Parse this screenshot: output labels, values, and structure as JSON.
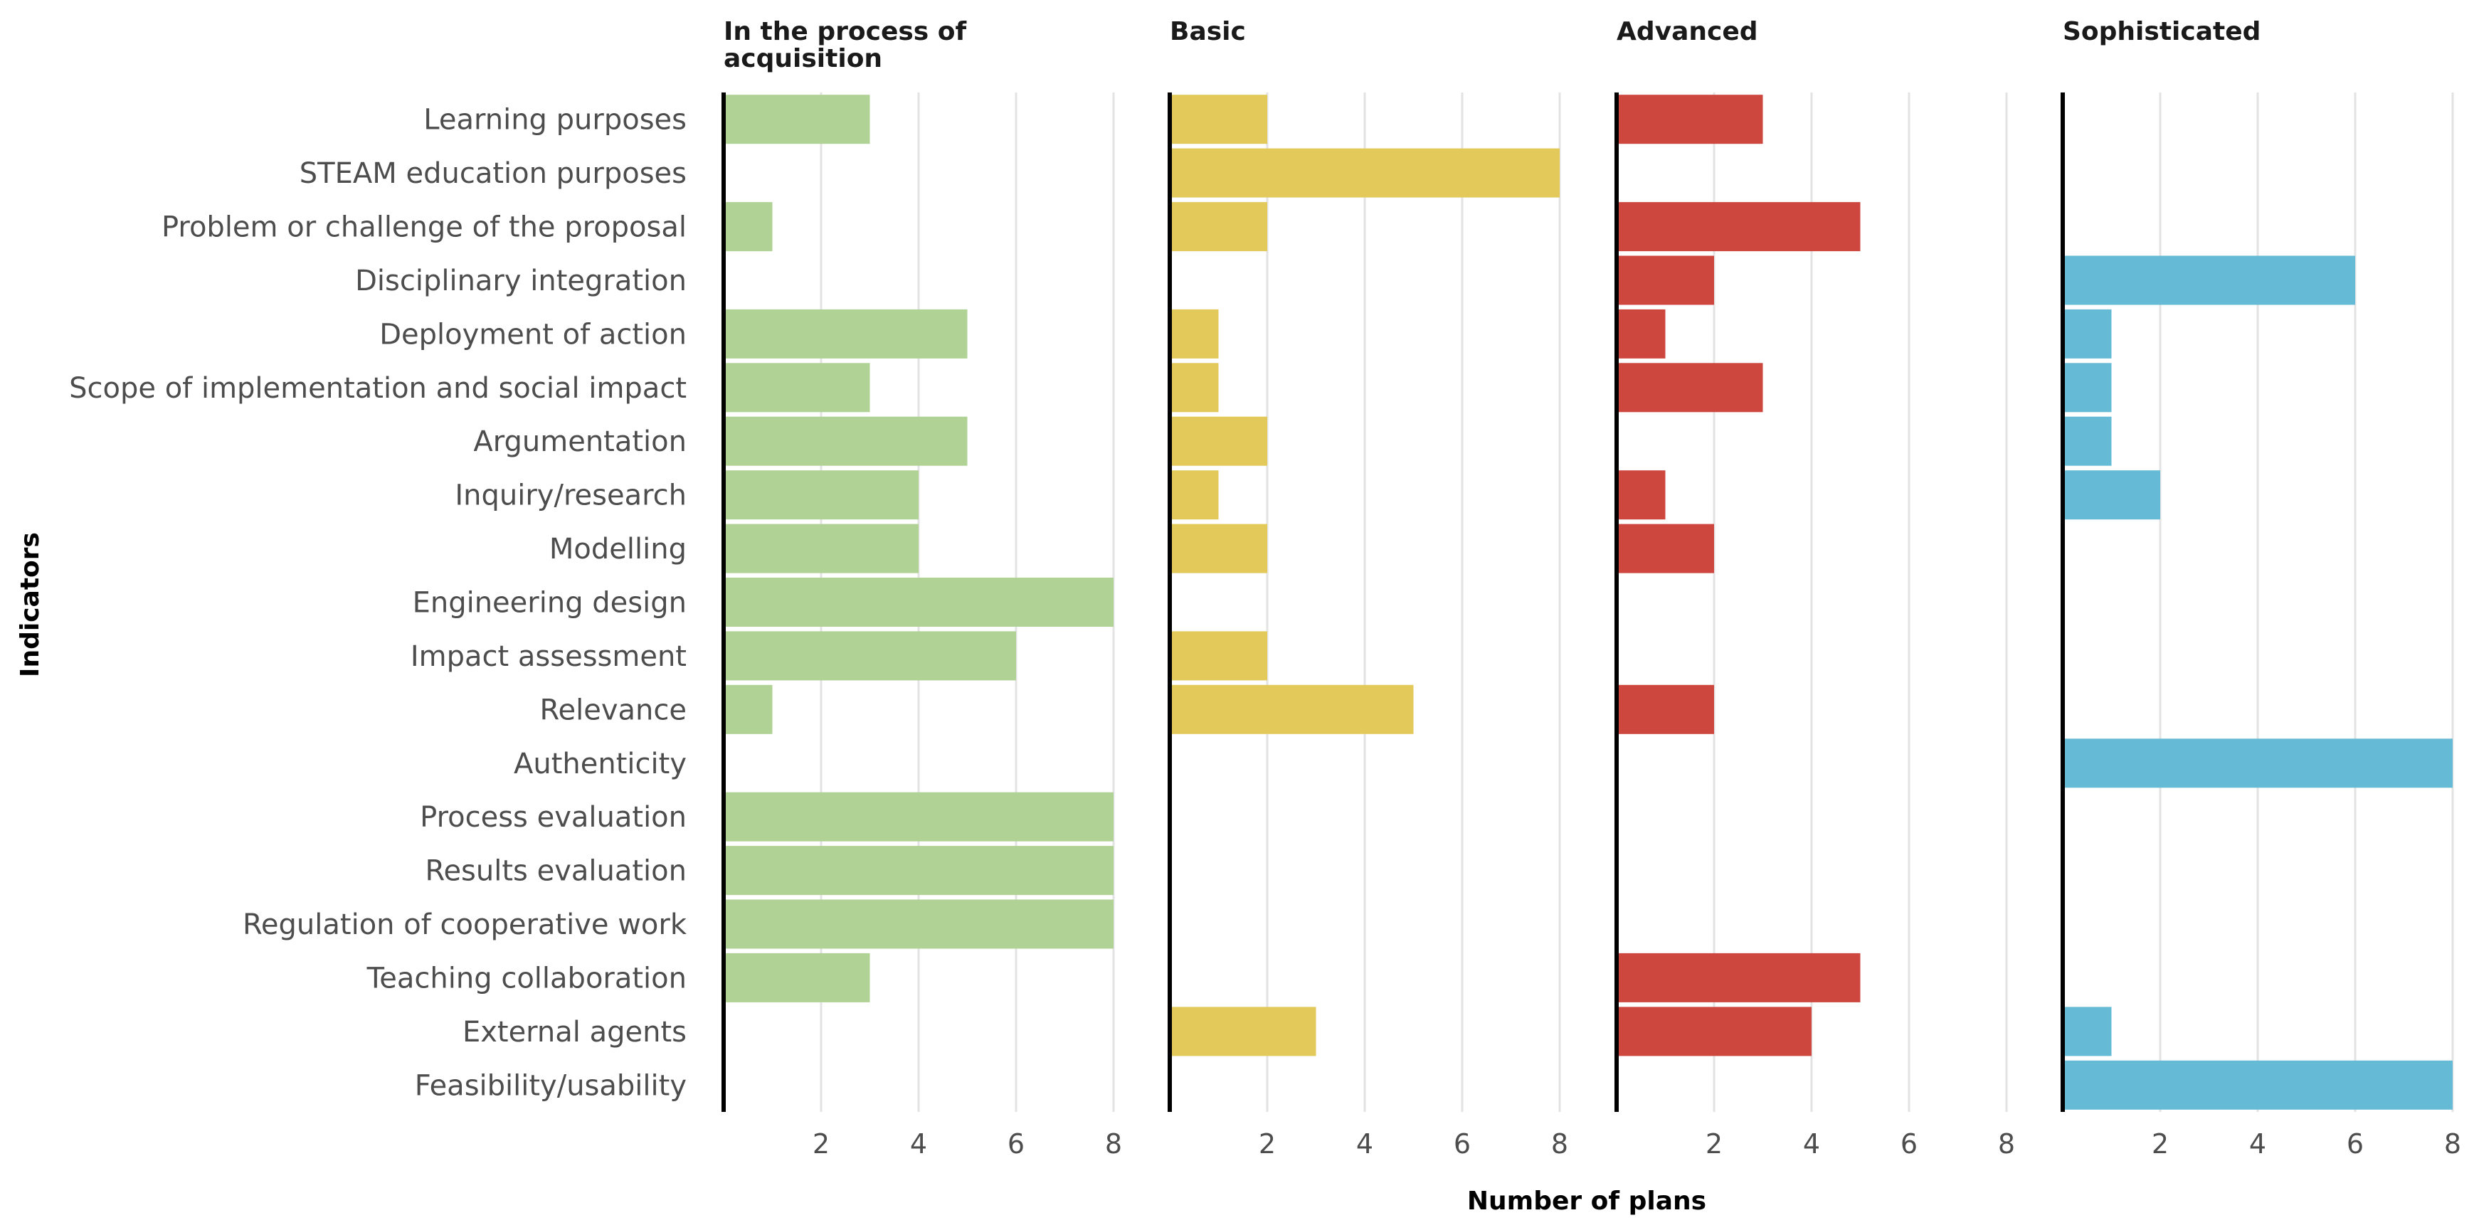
{
  "chart_data": {
    "type": "bar",
    "orientation": "horizontal",
    "xlabel": "Number of plans",
    "ylabel": "Indicators",
    "xlim": [
      0,
      8
    ],
    "xticks": [
      2,
      4,
      6,
      8
    ],
    "categories": [
      "Learning purposes",
      "STEAM education purposes",
      "Problem or challenge of the proposal",
      "Disciplinary integration",
      "Deployment of action",
      "Scope of implementation and social impact",
      "Argumentation",
      "Inquiry/research",
      "Modelling",
      "Engineering design",
      "Impact assessment",
      "Relevance",
      "Authenticity",
      "Process evaluation",
      "Results evaluation",
      "Regulation of cooperative work",
      "Teaching collaboration",
      "External agents",
      "Feasibility/usability"
    ],
    "series": [
      {
        "name": "In the process of acquisition",
        "title_lines": [
          "In the process of",
          "acquisition"
        ],
        "color": "#b0d294",
        "values": [
          3,
          0,
          1,
          0,
          5,
          3,
          5,
          4,
          4,
          8,
          6,
          1,
          0,
          8,
          8,
          8,
          3,
          0,
          0
        ]
      },
      {
        "name": "Basic",
        "title_lines": [
          "Basic"
        ],
        "color": "#e2c95a",
        "values": [
          2,
          8,
          2,
          0,
          1,
          1,
          2,
          1,
          2,
          0,
          2,
          5,
          0,
          0,
          0,
          0,
          0,
          3,
          0
        ]
      },
      {
        "name": "Advanced",
        "title_lines": [
          "Advanced"
        ],
        "color": "#cd473f",
        "values": [
          3,
          0,
          5,
          2,
          1,
          3,
          0,
          1,
          2,
          0,
          0,
          2,
          0,
          0,
          0,
          0,
          5,
          4,
          0
        ]
      },
      {
        "name": "Sophisticated",
        "title_lines": [
          "Sophisticated"
        ],
        "color": "#65bad5",
        "values": [
          0,
          0,
          0,
          6,
          1,
          1,
          1,
          2,
          0,
          0,
          0,
          0,
          8,
          0,
          0,
          0,
          0,
          1,
          8
        ]
      }
    ]
  }
}
